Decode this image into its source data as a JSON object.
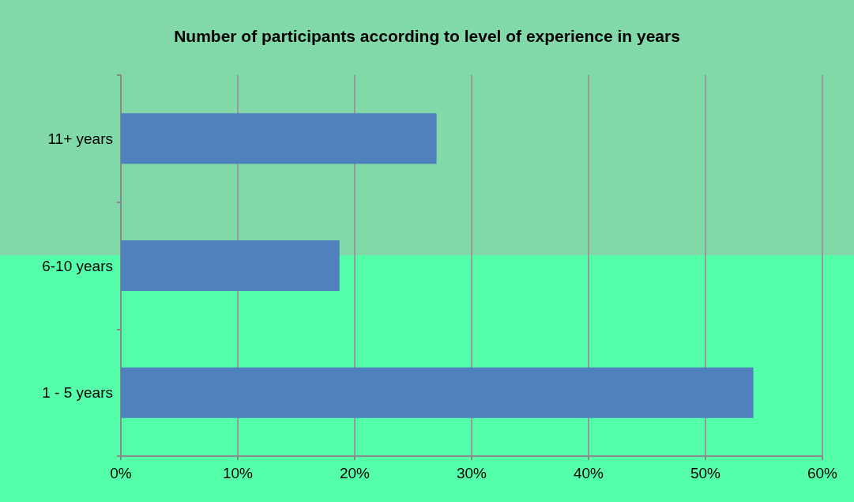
{
  "chart_data": {
    "type": "bar",
    "orientation": "horizontal",
    "title": "Number of participants according to level of experience in years",
    "categories": [
      "11+ years",
      "6-10 years",
      "1 - 5 years"
    ],
    "values": [
      27,
      18.7,
      54.1
    ],
    "color": "#4f81bd",
    "xlim": [
      0,
      60
    ],
    "xticks": [
      {
        "value": 0,
        "label": "0%"
      },
      {
        "value": 10,
        "label": "10%"
      },
      {
        "value": 20,
        "label": "20%"
      },
      {
        "value": 30,
        "label": "30%"
      },
      {
        "value": 40,
        "label": "40%"
      },
      {
        "value": 50,
        "label": "50%"
      },
      {
        "value": 60,
        "label": "60%"
      }
    ],
    "grid": "x"
  }
}
